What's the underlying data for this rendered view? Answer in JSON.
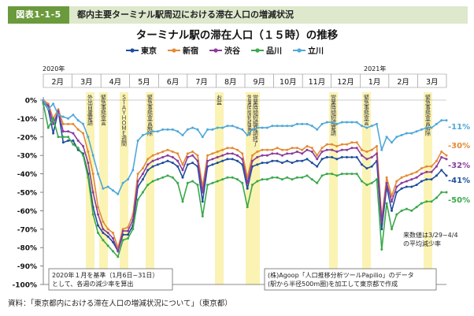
{
  "header": {
    "figure_label": "図表1-1-5",
    "figure_title": "都内主要ターミナル駅周辺における滞在人口の増減状況"
  },
  "source": "資料：「東京都内における滞在人口の増減状況について」（東京都）",
  "colors": {
    "header_accent": "#6b9a3c",
    "header_band": "#dde8cc",
    "highlight": "#fbf3b4"
  },
  "chart_data": {
    "type": "line",
    "title": "ターミナル駅の滞在人口（１５時）の推移",
    "year_labels": {
      "start": "2020年",
      "next": "2021年"
    },
    "month_labels": [
      "2月",
      "3月",
      "4月",
      "5月",
      "6月",
      "7月",
      "8月",
      "9月",
      "10月",
      "11月",
      "12月",
      "1月",
      "2月",
      "3月"
    ],
    "ylim": [
      -100,
      0
    ],
    "y_ticks": [
      "0%",
      "-10%",
      "-20%",
      "-30%",
      "-40%",
      "-50%",
      "-60%",
      "-70%",
      "-80%",
      "-90%",
      "-100%"
    ],
    "grid": false,
    "legend_position": "top-center",
    "series": [
      {
        "name": "東京",
        "color": "#1f4e9c",
        "end_label": "-41%",
        "values": [
          -1,
          -5,
          -18,
          -6,
          -23,
          -22,
          -22,
          -27,
          -29,
          -40,
          -58,
          -68,
          -72,
          -74,
          -77,
          -82,
          -73,
          -73,
          -68,
          -47,
          -43,
          -38,
          -36,
          -35,
          -34,
          -33,
          -34,
          -36,
          -42,
          -35,
          -34,
          -36,
          -55,
          -36,
          -35,
          -34,
          -33,
          -32,
          -32,
          -33,
          -35,
          -48,
          -36,
          -35,
          -34,
          -34,
          -33,
          -33,
          -34,
          -33,
          -34,
          -33,
          -33,
          -32,
          -34,
          -36,
          -32,
          -31,
          -31,
          -32,
          -31,
          -31,
          -31,
          -31,
          -35,
          -37,
          -36,
          -33,
          -70,
          -47,
          -60,
          -50,
          -48,
          -47,
          -47,
          -46,
          -44,
          -43,
          -43,
          -41,
          -38,
          -41
        ]
      },
      {
        "name": "新宿",
        "color": "#e38a36",
        "end_label": "-30%",
        "values": [
          0,
          -2,
          -10,
          -5,
          -13,
          -13,
          -13,
          -16,
          -18,
          -28,
          -40,
          -58,
          -66,
          -70,
          -72,
          -80,
          -70,
          -69,
          -62,
          -40,
          -37,
          -32,
          -30,
          -29,
          -28,
          -27,
          -28,
          -29,
          -35,
          -29,
          -28,
          -30,
          -47,
          -30,
          -29,
          -28,
          -27,
          -26,
          -26,
          -27,
          -29,
          -42,
          -30,
          -28,
          -27,
          -27,
          -27,
          -26,
          -27,
          -27,
          -26,
          -26,
          -27,
          -25,
          -26,
          -30,
          -26,
          -24,
          -24,
          -25,
          -24,
          -24,
          -23,
          -23,
          -27,
          -28,
          -27,
          -25,
          -64,
          -42,
          -52,
          -44,
          -42,
          -41,
          -40,
          -39,
          -37,
          -36,
          -36,
          -33,
          -28,
          -30
        ]
      },
      {
        "name": "渋谷",
        "color": "#8a3c9b",
        "end_label": "-32%",
        "values": [
          -1,
          -3,
          -13,
          -6,
          -17,
          -17,
          -18,
          -22,
          -25,
          -34,
          -50,
          -62,
          -70,
          -72,
          -75,
          -82,
          -71,
          -71,
          -65,
          -44,
          -40,
          -35,
          -33,
          -32,
          -31,
          -30,
          -31,
          -33,
          -38,
          -31,
          -30,
          -33,
          -50,
          -33,
          -32,
          -31,
          -30,
          -29,
          -29,
          -30,
          -32,
          -45,
          -33,
          -31,
          -30,
          -30,
          -29,
          -29,
          -30,
          -29,
          -29,
          -28,
          -29,
          -27,
          -28,
          -32,
          -28,
          -27,
          -27,
          -28,
          -27,
          -27,
          -26,
          -26,
          -30,
          -32,
          -31,
          -29,
          -66,
          -45,
          -55,
          -47,
          -45,
          -44,
          -43,
          -42,
          -40,
          -39,
          -39,
          -36,
          -31,
          -32
        ]
      },
      {
        "name": "品川",
        "color": "#3aa84a",
        "end_label": "-50%",
        "values": [
          -2,
          -15,
          -10,
          -20,
          -20,
          -20,
          -24,
          -26,
          -30,
          -42,
          -62,
          -72,
          -76,
          -79,
          -82,
          -85,
          -76,
          -75,
          -70,
          -54,
          -50,
          -46,
          -44,
          -43,
          -42,
          -41,
          -42,
          -45,
          -55,
          -45,
          -44,
          -46,
          -63,
          -46,
          -45,
          -44,
          -43,
          -42,
          -42,
          -43,
          -45,
          -58,
          -46,
          -44,
          -43,
          -43,
          -42,
          -42,
          -43,
          -42,
          -43,
          -42,
          -42,
          -41,
          -43,
          -45,
          -41,
          -40,
          -40,
          -41,
          -40,
          -40,
          -40,
          -40,
          -44,
          -46,
          -45,
          -43,
          -81,
          -56,
          -70,
          -62,
          -60,
          -59,
          -60,
          -58,
          -56,
          -55,
          -55,
          -53,
          -50,
          -50
        ]
      },
      {
        "name": "立川",
        "color": "#4fa8d8",
        "end_label": "-11%",
        "values": [
          0,
          -5,
          -2,
          -8,
          -9,
          -10,
          -8,
          -11,
          -13,
          -20,
          -30,
          -40,
          -48,
          -47,
          -49,
          -51,
          -45,
          -43,
          -38,
          -22,
          -19,
          -18,
          -17,
          -17,
          -16,
          -16,
          -16,
          -17,
          -19,
          -16,
          -15,
          -16,
          -20,
          -16,
          -16,
          -15,
          -15,
          -14,
          -14,
          -15,
          -16,
          -19,
          -16,
          -15,
          -15,
          -15,
          -14,
          -14,
          -14,
          -14,
          -14,
          -13,
          -13,
          -13,
          -14,
          -16,
          -13,
          -12,
          -12,
          -13,
          -12,
          -12,
          -12,
          -12,
          -14,
          -15,
          -14,
          -13,
          -27,
          -20,
          -23,
          -20,
          -19,
          -18,
          -18,
          -17,
          -16,
          -15,
          -15,
          -13,
          -11,
          -11
        ]
      }
    ],
    "event_labels": [
      "外出自粛要請",
      "緊急事態宣言",
      "ＳＴＡＹＨＯＭＥ週間",
      "緊急事態宣言解除",
      "お盆",
      "営業時間短縮要請",
      "営業時間短縮要請終了",
      "営業時間短縮要請",
      "緊急事態宣言",
      "緊急事態宣言解除"
    ],
    "annotations": {
      "note_bottom_left": [
        "2020年１月を基準（1月6日~31日）",
        "として、各週の減少率を算出"
      ],
      "note_bottom_right": [
        "(株)Agoop「人口推移分析ツールPapilio」のデータ",
        "(駅から半径500m圏)を加工して東京都で作成"
      ],
      "note_right": [
        "来数値は3/29~4/4",
        "の平均減少率"
      ]
    }
  }
}
